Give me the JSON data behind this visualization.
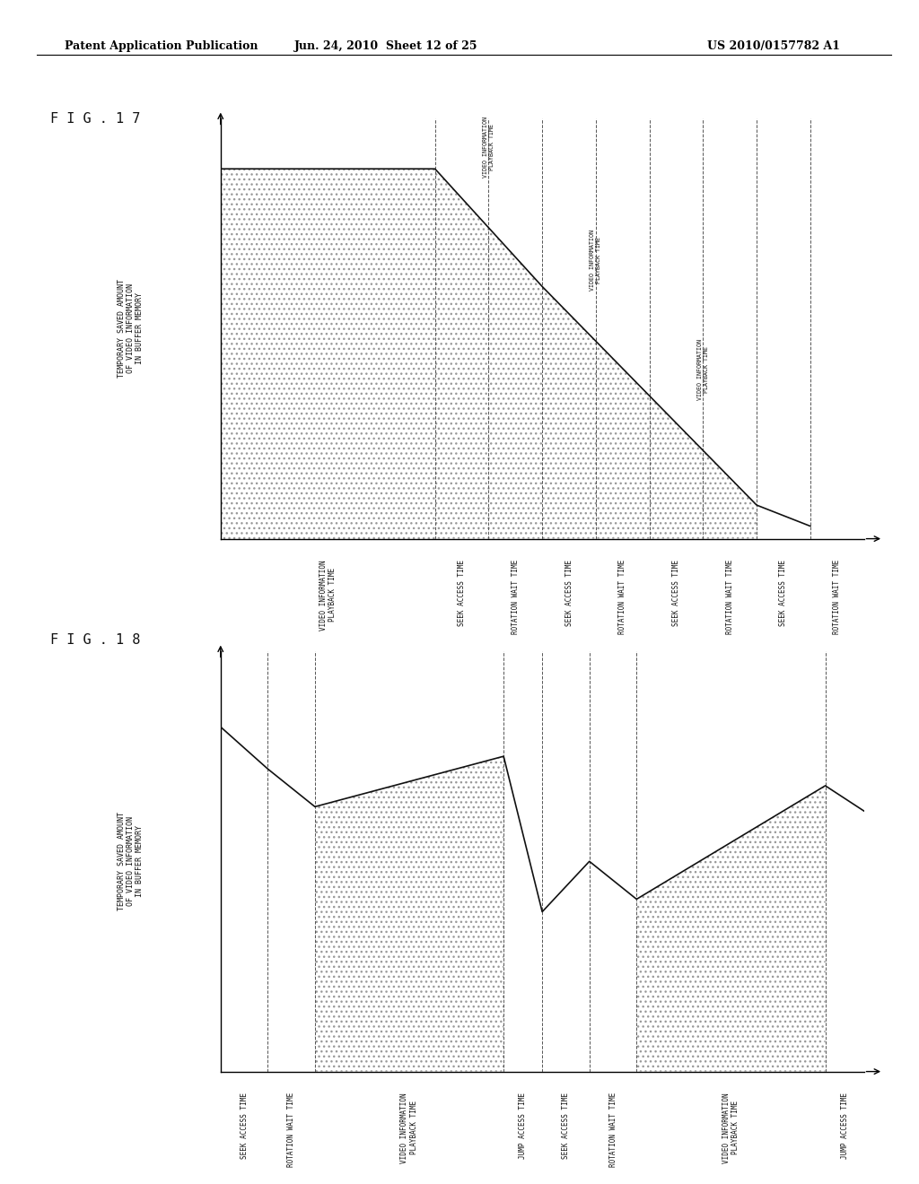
{
  "header_left": "Patent Application Publication",
  "header_mid": "Jun. 24, 2010  Sheet 12 of 25",
  "header_right": "US 2010/0157782 A1",
  "fig17_label": "F I G . 1 7",
  "fig18_label": "F I G . 1 8",
  "fig17_ylabel": [
    "TEMPORARY SAVED AMOUNT",
    "OF VIDEO INFORMATION",
    "IN BUFFER MEMORY"
  ],
  "fig18_ylabel": [
    "TEMPORARY SAVED AMOUNT",
    "OF VIDEO INFORMATION",
    "IN BUFFER MEMORY"
  ],
  "fig17_xtick_labels": [
    "VIDEO INFORMATION\nPLAYBACK TIME",
    "SEEK ACCESS TIME",
    "ROTATION WAIT TIME",
    "SEEK ACCESS TIME",
    "ROTATION WAIT TIME",
    "SEEK ACCESS TIME",
    "ROTATION WAIT TIME",
    "SEEK ACCESS TIME",
    "ROTATION WAIT TIME"
  ],
  "fig18_xtick_labels": [
    "SEEK ACCESS TIME",
    "ROTATION WAIT TIME",
    "VIDEO INFORMATION\nPLAYBACK TIME",
    "JUMP ACCESS TIME",
    "SEEK ACCESS TIME",
    "ROTATION WAIT TIME",
    "VIDEO INFORMATION\nPLAYBACK TIME",
    "JUMP ACCESS TIME"
  ],
  "background_color": "#ffffff",
  "line_color": "#111111",
  "dashed_color": "#555555",
  "header_fontsize": 9,
  "label_fontsize": 5.5,
  "fig_label_fontsize": 11,
  "ylabel_fontsize": 6.0
}
